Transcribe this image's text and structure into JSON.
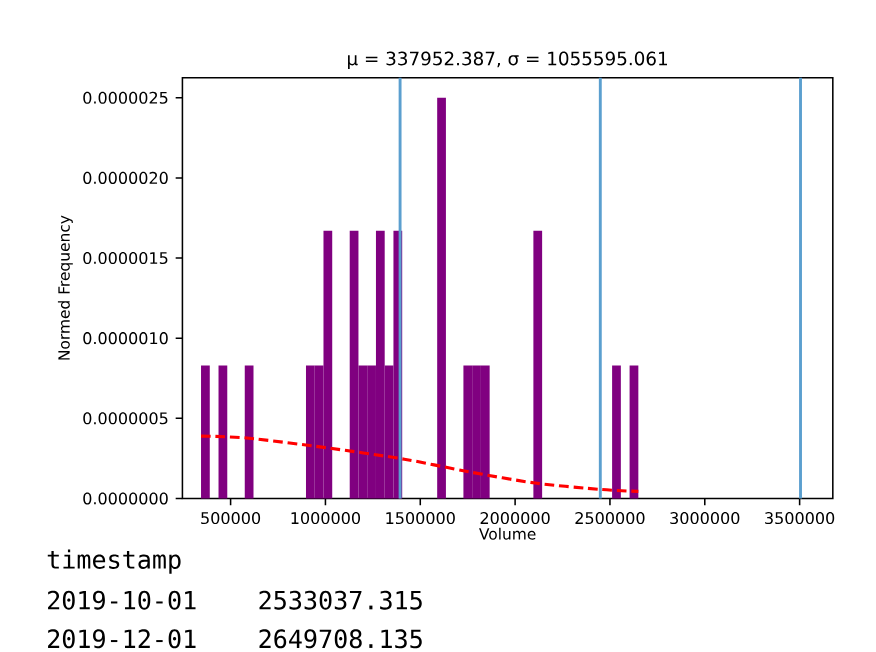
{
  "chart_data": {
    "type": "histogram",
    "title": "μ = 337952.387,  σ = 1055595.061",
    "xlabel": "Volume",
    "ylabel": "Normed Frequency",
    "bins": [
      344100,
      390212,
      436324,
      482436,
      528548,
      574660,
      620772,
      666884,
      712996,
      759108,
      805220,
      851332,
      897444,
      943556,
      989668,
      1035780,
      1081892,
      1128004,
      1174116,
      1220228,
      1266340,
      1312452,
      1358564,
      1404676,
      1450788,
      1496900,
      1543012,
      1589124,
      1635236,
      1681348,
      1727460,
      1773572,
      1819684,
      1865796,
      1911908,
      1958020,
      2004132,
      2050244,
      2096356,
      2142468,
      2188580,
      2234692,
      2280804,
      2326916,
      2373028,
      2419140,
      2465252,
      2511364,
      2557476,
      2603588,
      2649700
    ],
    "values": [
      8.3e-07,
      0,
      8.3e-07,
      0,
      0,
      8.3e-07,
      0,
      0,
      0,
      0,
      0,
      0,
      8.3e-07,
      8.3e-07,
      1.67e-06,
      0,
      0,
      1.67e-06,
      8.3e-07,
      8.3e-07,
      1.67e-06,
      8.3e-07,
      1.67e-06,
      0,
      0,
      0,
      0,
      2.5e-06,
      0,
      0,
      8.3e-07,
      8.3e-07,
      8.3e-07,
      0,
      0,
      0,
      0,
      0,
      1.67e-06,
      0,
      0,
      0,
      0,
      0,
      0,
      0,
      0,
      8.3e-07,
      0,
      8.3e-07
    ],
    "color": "#800080",
    "series": [
      {
        "type": "line",
        "color": "#ff0000",
        "line_style": "dashed",
        "x": [
          344100,
          586100,
          1001000,
          1415800,
          1761300,
          2107000,
          2452600,
          2649700
        ],
        "values": [
          3.89e-07,
          3.77e-07,
          3.17e-07,
          2.45e-07,
          1.65e-07,
          9.6e-08,
          5.6e-08,
          4.4e-08
        ]
      }
    ],
    "ref_lines": [
      {
        "axis": "x",
        "value": 1393547,
        "color": "#5b9fcf"
      },
      {
        "axis": "x",
        "value": 2449142,
        "color": "#5b9fcf"
      },
      {
        "axis": "x",
        "value": 3504738,
        "color": "#5b9fcf"
      }
    ],
    "xlim": [
      246000,
      3675000
    ],
    "ylim": [
      0,
      2.625e-06
    ],
    "xticks": [
      500000,
      1000000,
      1500000,
      2000000,
      2500000,
      3000000,
      3500000
    ],
    "yticks": [
      {
        "value": 0,
        "label": "0.0000000"
      },
      {
        "value": 5e-07,
        "label": "0.0000005"
      },
      {
        "value": 1e-06,
        "label": "0.0000010"
      },
      {
        "value": 1.5e-06,
        "label": "0.0000015"
      },
      {
        "value": 2e-06,
        "label": "0.0000020"
      },
      {
        "value": 2.5e-06,
        "label": "0.0000025"
      }
    ],
    "grid": false,
    "annotations": [
      "timestamp",
      "2019-10-01    2533037.315",
      "2019-12-01    2649708.135"
    ]
  }
}
